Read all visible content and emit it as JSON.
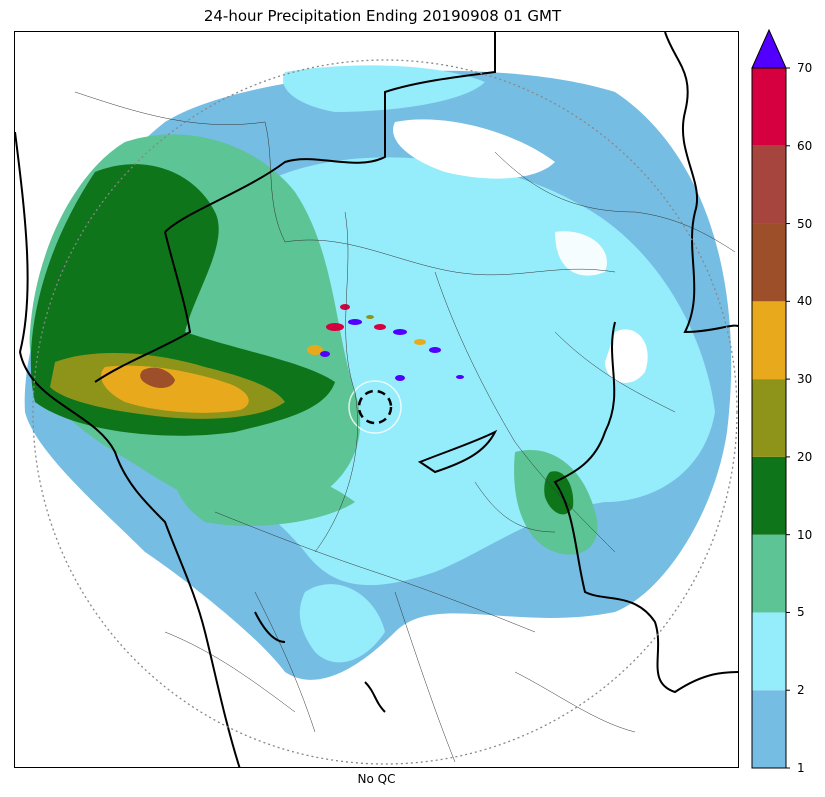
{
  "title": "24-hour Precipitation Ending 20190908 01 GMT",
  "xlabel": "No QC",
  "colorbar": {
    "levels": [
      "1",
      "2",
      "5",
      "10",
      "20",
      "30",
      "40",
      "50",
      "60",
      "70"
    ],
    "colors": [
      "#76bde3",
      "#95ecfb",
      "#5cc495",
      "#0f751b",
      "#8e9419",
      "#e8aa1c",
      "#9c4f28",
      "#a6453d",
      "#d60040"
    ],
    "extend_color": "#5100ff",
    "extend": "max",
    "units": ""
  },
  "colors": {
    "state_boundary": "#000000",
    "district_boundary": "#333333",
    "radar_range_ring": "#888888"
  }
}
